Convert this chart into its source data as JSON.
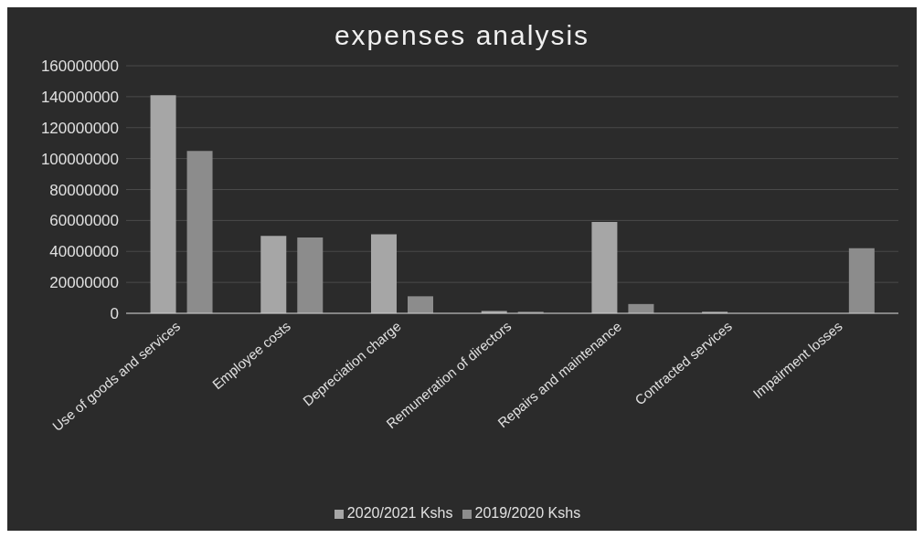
{
  "chart_data": {
    "type": "bar",
    "title": "expenses analysis",
    "categories": [
      "Use of goods and services",
      "Employee costs",
      "Depreciation charge",
      "Remuneration of directors",
      "Repairs and maintenance",
      "Contracted services",
      "Impairment losses"
    ],
    "series": [
      {
        "name": "2020/2021 Kshs",
        "color": "#a6a6a6",
        "values": [
          141000000,
          50000000,
          51000000,
          1500000,
          59000000,
          1000000,
          0
        ]
      },
      {
        "name": "2019/2020 Kshs",
        "color": "#8c8c8c",
        "values": [
          105000000,
          49000000,
          11000000,
          1000000,
          6000000,
          0,
          42000000
        ]
      }
    ],
    "ylim": [
      0,
      160000000
    ],
    "yticks": [
      0,
      20000000,
      40000000,
      60000000,
      80000000,
      100000000,
      120000000,
      140000000,
      160000000
    ],
    "grid": "y",
    "legend": "bottom"
  }
}
